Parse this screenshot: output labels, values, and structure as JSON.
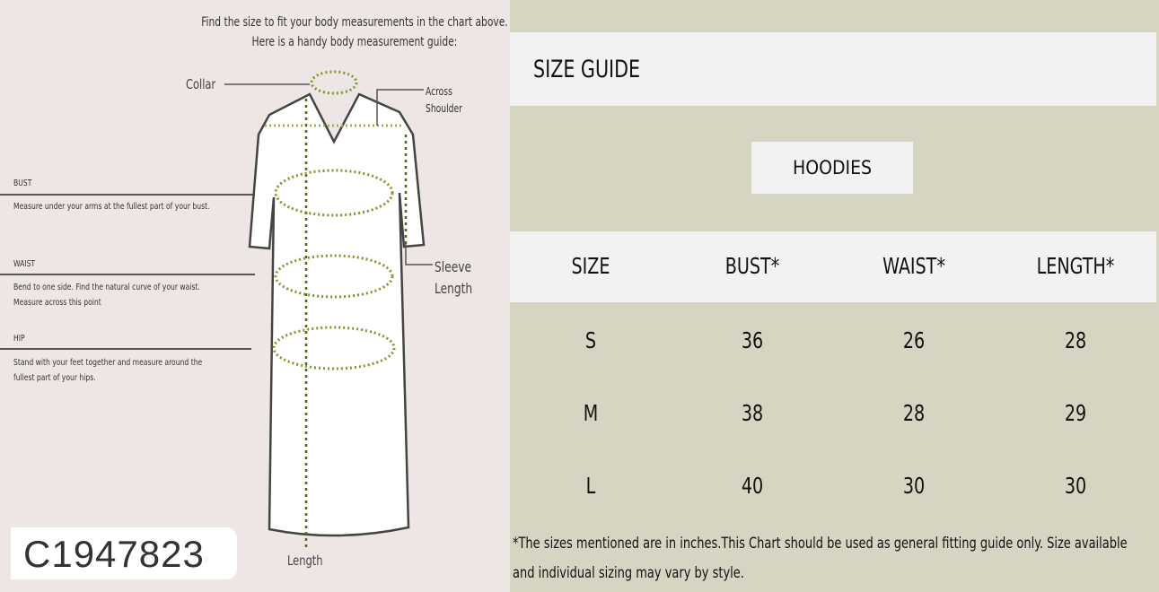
{
  "guide": {
    "intro_line1": "Find the size to fit your body measurements in the chart above.",
    "intro_line2": "Here is a handy body measurement guide:",
    "collar": "Collar",
    "across_shoulder_1": "Across",
    "across_shoulder_2": "Shoulder",
    "sleeve_1": "Sleeve",
    "sleeve_2": "Length",
    "length": "Length",
    "bust_title": "BUST",
    "bust_desc": "Measure under your arms at the fullest part of your bust.",
    "waist_title": "WAIST",
    "waist_desc_1": "Bend to one side. Find the natural curve of your waist.",
    "waist_desc_2": "Measure across this point",
    "hip_title": "HIP",
    "hip_desc_1": "Stand with your feet together and measure around the",
    "hip_desc_2": "fullest part of your hips.",
    "product_code": "C1947823"
  },
  "size_guide": {
    "title": "SIZE GUIDE",
    "category": "HOODIES",
    "headers": [
      "SIZE",
      "BUST*",
      "WAIST*",
      "LENGTH*"
    ],
    "rows": [
      [
        "S",
        "36",
        "26",
        "28"
      ],
      [
        "M",
        "38",
        "28",
        "29"
      ],
      [
        "L",
        "40",
        "30",
        "30"
      ]
    ],
    "note_line1": "*The sizes mentioned are in inches.This Chart should be used as general fitting guide only. Size available",
    "note_line2": "and individual sizing may vary by style."
  },
  "colors": {
    "left_bg": "#ede6e4",
    "right_bg": "#d6d5c1",
    "band": "#f2f2f2",
    "measure": "#7a9a2a"
  }
}
